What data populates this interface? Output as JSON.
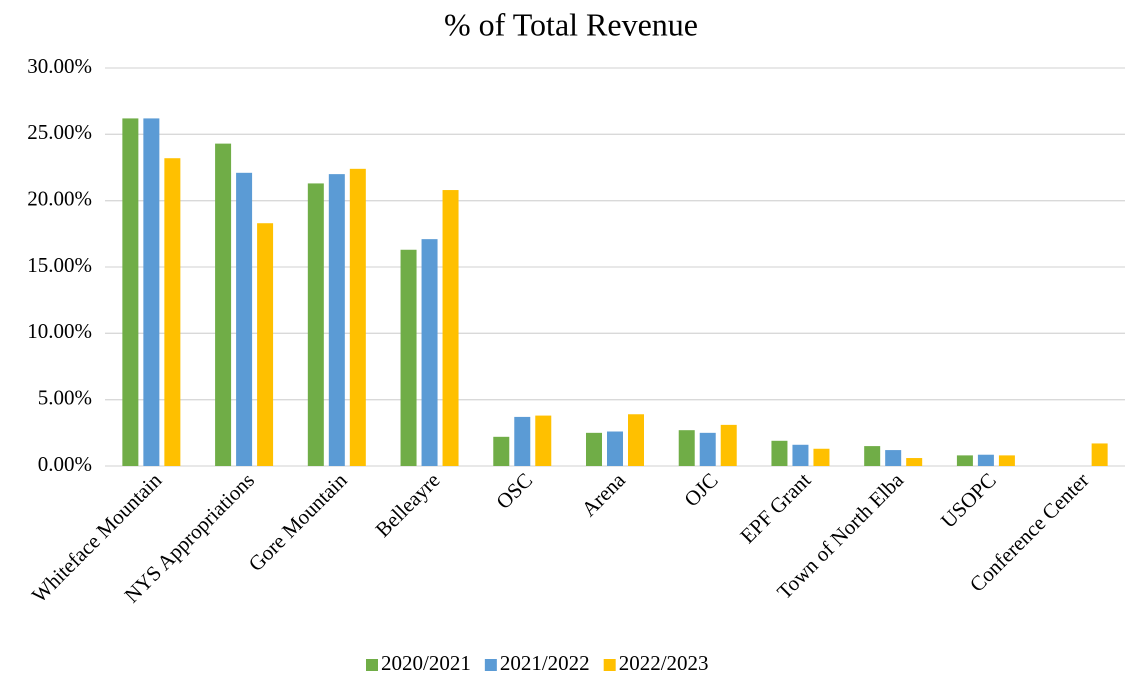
{
  "chart_data": {
    "type": "bar",
    "title": "% of Total Revenue",
    "categories": [
      "Whiteface Mountain",
      "NYS Appropriations",
      "Gore Mountain",
      "Belleayre",
      "OSC",
      "Arena",
      "OJC",
      "EPF Grant",
      "Town of North Elba",
      "USOPC",
      "Conference Center"
    ],
    "series": [
      {
        "name": "2020/2021",
        "color": "#70ad47",
        "values": [
          26.2,
          24.3,
          21.3,
          16.3,
          2.2,
          2.5,
          2.7,
          1.9,
          1.5,
          0.8,
          null
        ]
      },
      {
        "name": "2021/2022",
        "color": "#5b9bd5",
        "values": [
          26.2,
          22.1,
          22.0,
          17.1,
          3.7,
          2.6,
          2.5,
          1.6,
          1.2,
          0.85,
          null
        ]
      },
      {
        "name": "2022/2023",
        "color": "#ffc000",
        "values": [
          23.2,
          18.3,
          22.4,
          20.8,
          3.8,
          3.9,
          3.1,
          1.3,
          0.6,
          0.8,
          1.7
        ]
      }
    ],
    "ylim": [
      0,
      30
    ],
    "yticks": [
      {
        "value": 0,
        "label": "0.00%"
      },
      {
        "value": 5,
        "label": "5.00%"
      },
      {
        "value": 10,
        "label": "10.00%"
      },
      {
        "value": 15,
        "label": "15.00%"
      },
      {
        "value": 20,
        "label": "20.00%"
      },
      {
        "value": 25,
        "label": "25.00%"
      },
      {
        "value": 30,
        "label": "30.00%"
      }
    ],
    "grid": true,
    "legend": "bottom"
  }
}
